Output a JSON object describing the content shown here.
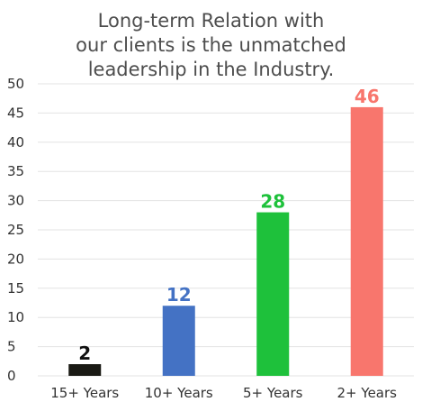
{
  "chart_data": {
    "type": "bar",
    "title_lines": [
      "Long-term Relation with",
      "our clients is the unmatched",
      "leadership in the Industry."
    ],
    "categories": [
      "15+ Years",
      "10+ Years",
      "5+ Years",
      "2+ Years"
    ],
    "values": [
      2,
      12,
      28,
      46
    ],
    "colors": [
      "#1a1a14",
      "#4472c4",
      "#1ec13b",
      "#f8766d"
    ],
    "label_colors": [
      "#111111",
      "#4472c4",
      "#1ec13b",
      "#f8766d"
    ],
    "ylim": [
      0,
      50
    ],
    "yticks": [
      0,
      5,
      10,
      15,
      20,
      25,
      30,
      35,
      40,
      45,
      50
    ],
    "xlabel": "",
    "ylabel": "",
    "grid": true,
    "legend": false,
    "grid_color": "#e3e3e3"
  }
}
